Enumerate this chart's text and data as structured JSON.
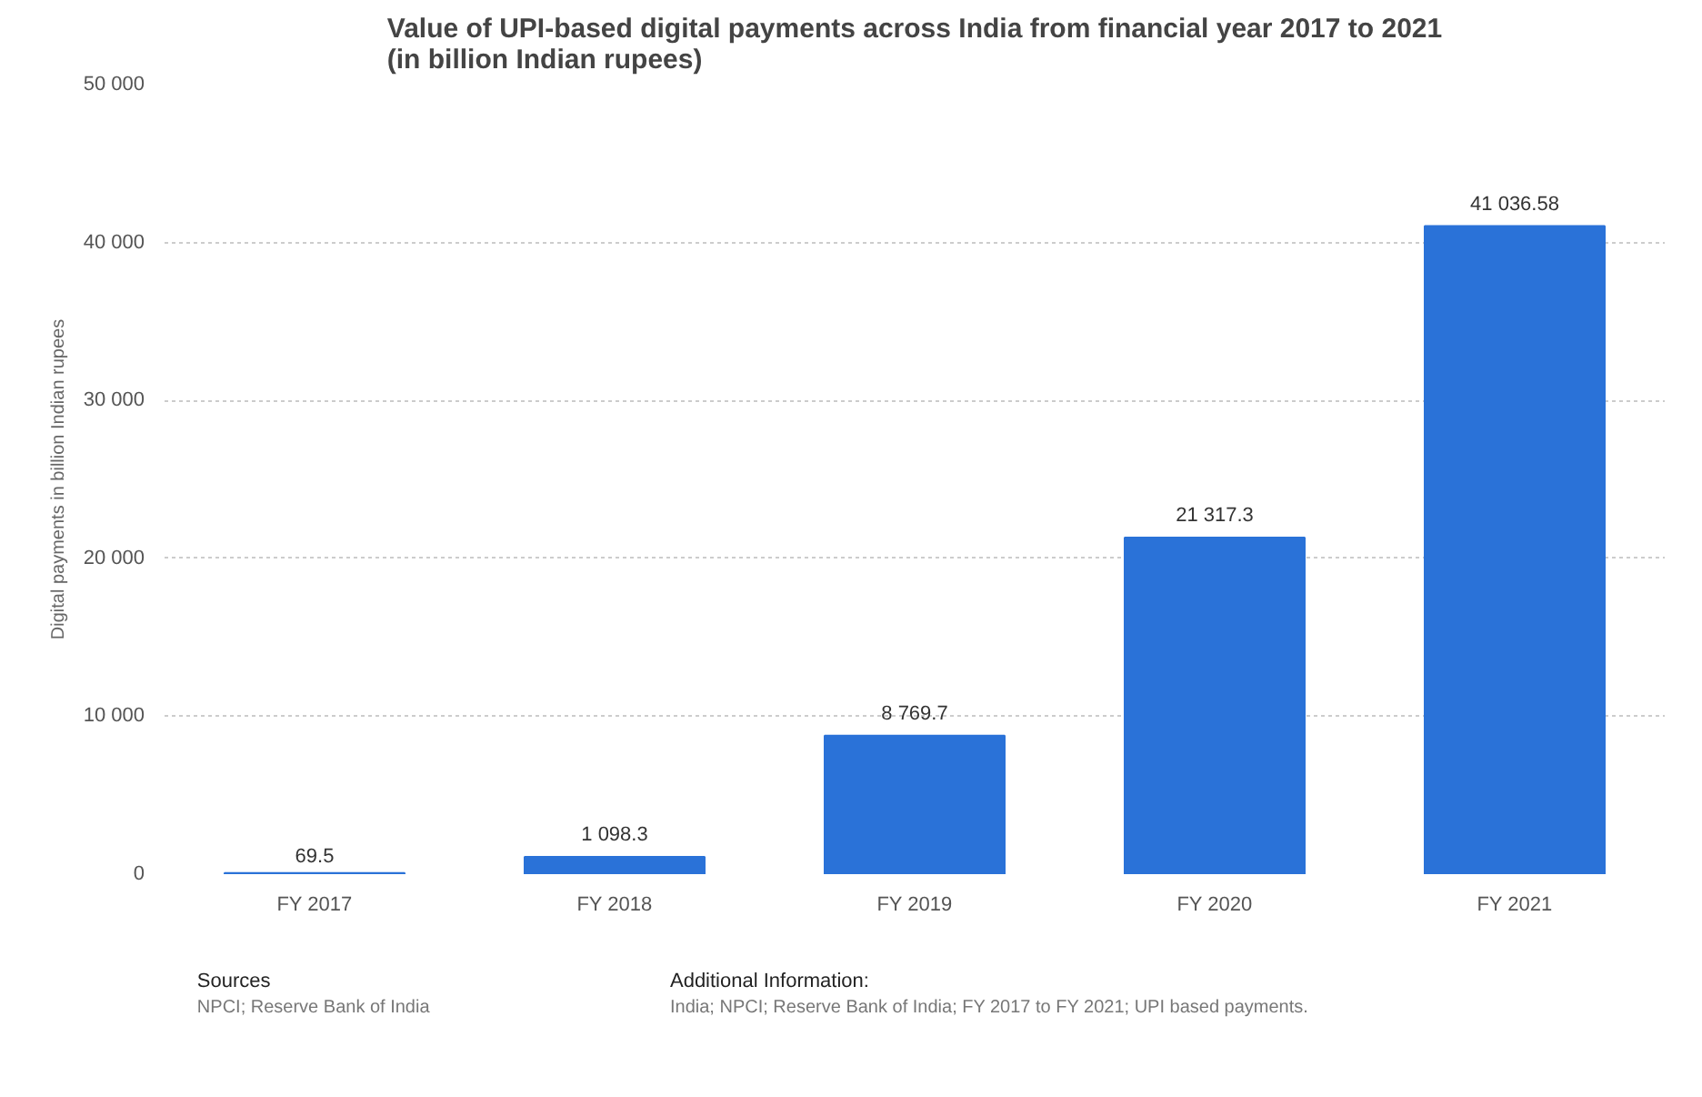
{
  "chart_data": {
    "type": "bar",
    "title": "Value of UPI-based digital payments across India from financial year 2017 to 2021 (in billion Indian rupees)",
    "ylabel": "Digital payments in billion Indian rupees",
    "categories": [
      "FY 2017",
      "FY 2018",
      "FY 2019",
      "FY 2020",
      "FY 2021"
    ],
    "values": [
      69.5,
      1098.3,
      8769.7,
      21317.3,
      41036.58
    ],
    "value_labels": [
      "69.5",
      "1 098.3",
      "8 769.7",
      "21 317.3",
      "41 036.58"
    ],
    "color": "#2a72d8",
    "ylim": [
      0,
      50000
    ],
    "yticks": [
      {
        "value": 0,
        "label": "0"
      },
      {
        "value": 10000,
        "label": "10 000"
      },
      {
        "value": 20000,
        "label": "20 000"
      },
      {
        "value": 30000,
        "label": "30 000"
      },
      {
        "value": 40000,
        "label": "40 000"
      },
      {
        "value": 50000,
        "label": "50 000"
      }
    ],
    "grid": "y",
    "annotations": [
      "Sources",
      "NPCI; Reserve Bank of India",
      "Additional Information:",
      "India; NPCI; Reserve Bank of India; FY 2017 to FY 2021; UPI based payments."
    ]
  }
}
